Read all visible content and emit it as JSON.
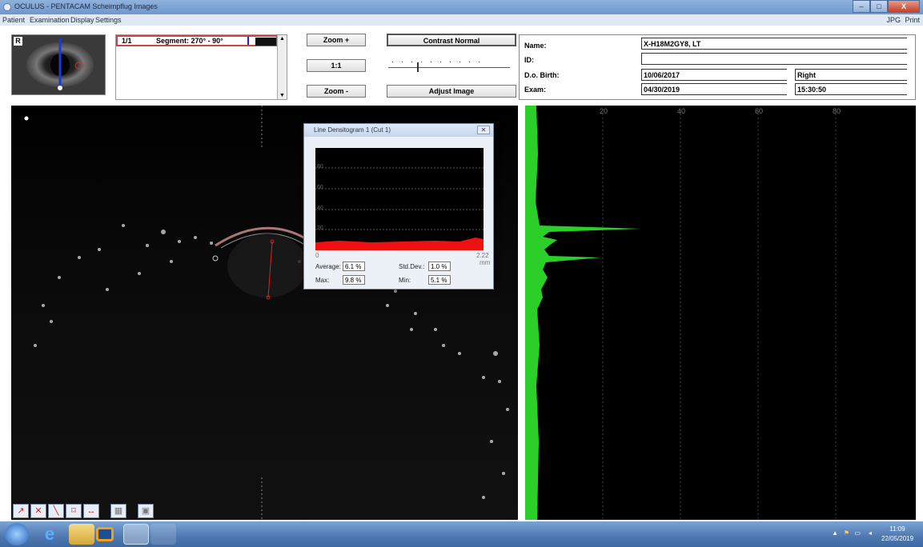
{
  "window": {
    "title": "OCULUS - PENTACAM  Scheimpflug Images",
    "controls": [
      "–",
      "□",
      "X"
    ]
  },
  "menu": {
    "items": [
      "Patient",
      "Examination",
      "Display",
      "Settings"
    ],
    "right_items": [
      "JPG",
      "Print"
    ]
  },
  "thumbnail": {
    "eye_label": "R"
  },
  "segment": {
    "index": "1/1",
    "label": "Segment: 270° - 90°"
  },
  "toolbar": {
    "zoom_in": "Zoom +",
    "one_to_one": "1:1",
    "zoom_out": "Zoom -",
    "contrast": "Contrast Normal",
    "adjust": "Adjust Image"
  },
  "patient": {
    "name_label": "Name:",
    "name": "X-H18M2GY8, LT",
    "id_label": "ID:",
    "id": "",
    "dob_label": "D.o. Birth:",
    "dob": "10/06/2017",
    "eye": "Right",
    "exam_label": "Exam:",
    "exam_date": "04/30/2019",
    "exam_time": "15:30:50"
  },
  "graph": {
    "x_ticks": [
      "20",
      "40",
      "60",
      "80"
    ]
  },
  "densitogram": {
    "title": "Line Densitogram 1  (Cut 1)",
    "y_ticks": [
      "80",
      "60",
      "40",
      "20"
    ],
    "x_start": "0",
    "x_end": "2.22",
    "x_unit": "mm",
    "average_label": "Average:",
    "average": "6.1 %",
    "stddev_label": "Std.Dev.:",
    "stddev": "1.0 %",
    "max_label": "Max:",
    "max": "9.8 %",
    "min_label": "Min:",
    "min": "5.1 %"
  },
  "taskbar": {
    "time": "11:09",
    "date": "22/05/2019"
  }
}
